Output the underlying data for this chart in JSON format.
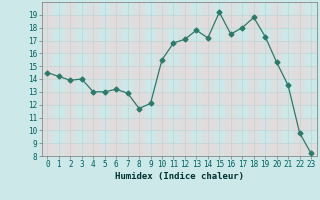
{
  "x": [
    0,
    1,
    2,
    3,
    4,
    5,
    6,
    7,
    8,
    9,
    10,
    11,
    12,
    13,
    14,
    15,
    16,
    17,
    18,
    19,
    20,
    21,
    22,
    23
  ],
  "y": [
    14.5,
    14.2,
    13.9,
    14.0,
    13.0,
    13.0,
    13.2,
    12.9,
    11.7,
    12.1,
    15.5,
    16.8,
    17.1,
    17.8,
    17.2,
    19.2,
    17.5,
    18.0,
    18.8,
    17.3,
    15.3,
    13.5,
    9.8,
    8.2
  ],
  "xlabel": "Humidex (Indice chaleur)",
  "ylim": [
    8,
    20
  ],
  "xlim": [
    -0.5,
    23.5
  ],
  "yticks": [
    8,
    9,
    10,
    11,
    12,
    13,
    14,
    15,
    16,
    17,
    18,
    19
  ],
  "xticks": [
    0,
    1,
    2,
    3,
    4,
    5,
    6,
    7,
    8,
    9,
    10,
    11,
    12,
    13,
    14,
    15,
    16,
    17,
    18,
    19,
    20,
    21,
    22,
    23
  ],
  "line_color": "#2d7a6a",
  "marker": "D",
  "marker_size": 2.5,
  "bg_color": "#cce8e8",
  "plot_bg_color": "#cce8e8",
  "minor_cell_color": "#daf0f0",
  "major_grid_color": "#c0d4d4",
  "minor_grid_color": "#c0d4d4",
  "axis_fontsize": 6.5,
  "tick_fontsize": 5.5
}
